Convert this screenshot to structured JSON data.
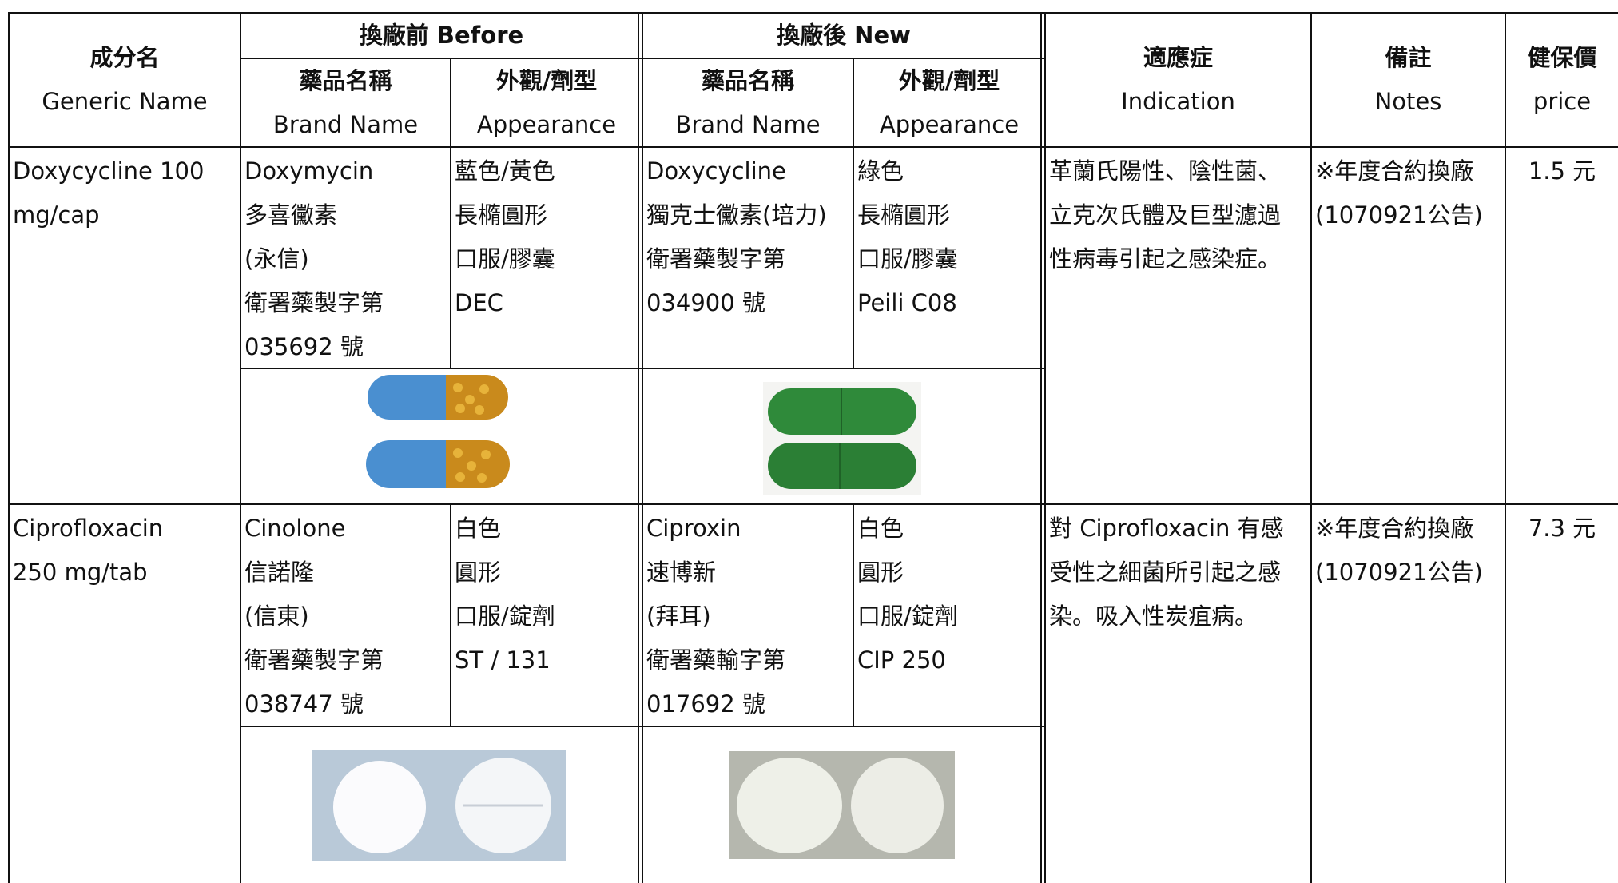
{
  "header": {
    "generic_name": [
      "成分名",
      "Generic Name"
    ],
    "before": "換廠前  Before",
    "new": "換廠後  New",
    "brand_name": [
      "藥品名稱",
      "Brand Name"
    ],
    "appearance": [
      "外觀/劑型",
      "Appearance"
    ],
    "indication": [
      "適應症",
      "Indication"
    ],
    "notes": [
      "備註",
      "Notes"
    ],
    "price": [
      "健保價",
      "price"
    ]
  },
  "rows": [
    {
      "generic": [
        "Doxycycline 100",
        "mg/cap"
      ],
      "before_brand": [
        "Doxymycin",
        "多喜黴素",
        "(永信)",
        "衛署藥製字第",
        "035692 號"
      ],
      "before_appearance": [
        "藍色/黃色",
        "長橢圓形",
        "口服/膠囊",
        "DEC"
      ],
      "new_brand": [
        "Doxycycline",
        "獨克士黴素(培力)",
        "衛署藥製字第",
        "034900 號"
      ],
      "new_appearance": [
        "綠色",
        "長橢圓形",
        "口服/膠囊",
        "Peili C08"
      ],
      "indication": [
        "革蘭氏陽性、陰性菌、",
        "立克次氏體及巨型濾過",
        "性病毒引起之感染症。"
      ],
      "notes": [
        "※年度合約換廠",
        "(1070921公告)"
      ],
      "price": "1.5 元"
    },
    {
      "generic": [
        "Ciprofloxacin",
        "250 mg/tab"
      ],
      "before_brand": [
        "Cinolone",
        "信諾隆",
        "(信東)",
        "衛署藥製字第",
        "038747 號"
      ],
      "before_appearance": [
        "白色",
        "圓形",
        "口服/錠劑",
        "ST / 131"
      ],
      "new_brand": [
        "Ciproxin",
        "速博新",
        "(拜耳)",
        "衛署藥輸字第",
        "017692 號"
      ],
      "new_appearance": [
        "白色",
        "圓形",
        "口服/錠劑",
        "CIP 250"
      ],
      "indication": [
        "對 Ciprofloxacin 有感",
        "受性之細菌所引起之感",
        "染。吸入性炭疽病。"
      ],
      "notes": [
        "※年度合約換廠",
        "(1070921公告)"
      ],
      "price": "7.3 元"
    }
  ]
}
